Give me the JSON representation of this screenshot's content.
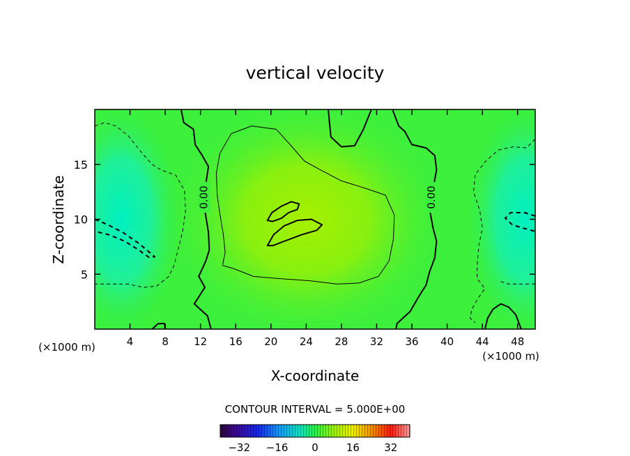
{
  "chart_data": {
    "type": "heatmap",
    "title": "vertical velocity",
    "xlabel": "X-coordinate",
    "ylabel": "Z-coordinate",
    "x_unit_label": "(×1000 m)",
    "x_unit_label_right": "(×1000 m)",
    "xlim": [
      0,
      50
    ],
    "ylim": [
      0,
      20
    ],
    "x_ticks": [
      4,
      8,
      12,
      16,
      20,
      24,
      28,
      32,
      36,
      40,
      44,
      48
    ],
    "y_ticks": [
      5,
      10,
      15
    ],
    "x_tick_labels": [
      "4",
      "8",
      "12",
      "16",
      "20",
      "24",
      "28",
      "32",
      "36",
      "40",
      "44",
      "48"
    ],
    "y_tick_labels": [
      "5",
      "10",
      "15"
    ],
    "contour_interval_text": "CONTOUR INTERVAL = 5.000E+00",
    "contour_labels": [
      "0.00",
      "0.00"
    ],
    "colorbar": {
      "range": [
        -40,
        40
      ],
      "tick_values": [
        -32,
        -16,
        0,
        16,
        32
      ],
      "tick_labels": [
        "−32",
        "−16",
        "0",
        "16",
        "32"
      ]
    },
    "field_features": [
      {
        "kind": "updraft",
        "center_x": 24,
        "center_z": 10,
        "peak_value": 10
      },
      {
        "kind": "downdraft",
        "center_x": 3,
        "center_z": 10,
        "peak_value": -10
      },
      {
        "kind": "downdraft",
        "center_x": 49,
        "center_z": 10,
        "peak_value": -10
      }
    ],
    "grid": false
  },
  "colors": {
    "background": "#ffffff",
    "field_zero": "#3cf03c",
    "field_positive": "#9cf000",
    "field_negative": "#14f0a8",
    "contour": "#000000"
  }
}
